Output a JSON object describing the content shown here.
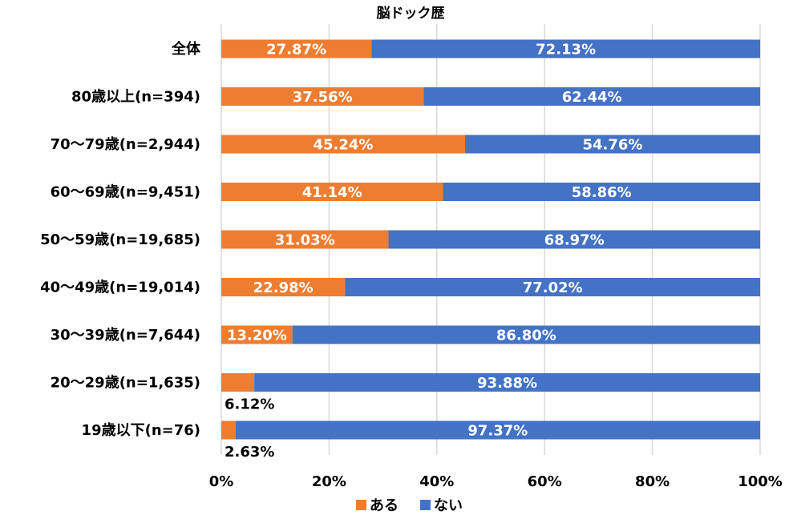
{
  "chart_data": {
    "type": "bar",
    "orientation": "horizontal",
    "stacked": true,
    "title": "脳ドック歴",
    "categories": [
      "全体",
      "80歳以上(n=394)",
      "70～79歳(n=2,944)",
      "60～69歳(n=9,451)",
      "50～59歳(n=19,685)",
      "40～49歳(n=19,014)",
      "30～39歳(n=7,644)",
      "20～29歳(n=1,635)",
      "19歳以下(n=76)"
    ],
    "series": [
      {
        "name": "ある",
        "color": "#ED7D31",
        "values": [
          27.87,
          37.56,
          45.24,
          41.14,
          31.03,
          22.98,
          13.2,
          6.12,
          2.63
        ],
        "labels": [
          "27.87%",
          "37.56%",
          "45.24%",
          "41.14%",
          "31.03%",
          "22.98%",
          "13.20%",
          "6.12%",
          "2.63%"
        ]
      },
      {
        "name": "ない",
        "color": "#4472C4",
        "values": [
          72.13,
          62.44,
          54.76,
          58.86,
          68.97,
          77.02,
          86.8,
          93.88,
          97.37
        ],
        "labels": [
          "72.13%",
          "62.44%",
          "54.76%",
          "58.86%",
          "68.97%",
          "77.02%",
          "86.80%",
          "93.88%",
          "97.37%"
        ]
      }
    ],
    "xlim": [
      0,
      100
    ],
    "x_ticks": [
      "0%",
      "20%",
      "40%",
      "60%",
      "80%",
      "100%"
    ],
    "x_tick_values": [
      0,
      20,
      40,
      60,
      80,
      100
    ],
    "grid": true,
    "legend_position": "bottom",
    "gridline_color": "#D9D9D9"
  }
}
